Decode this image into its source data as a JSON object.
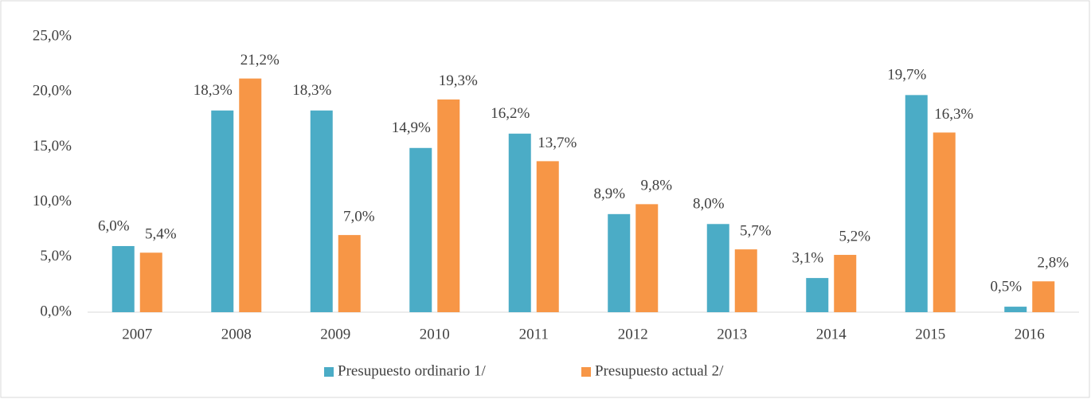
{
  "chart_data": {
    "type": "bar",
    "categories": [
      "2007",
      "2008",
      "2009",
      "2010",
      "2011",
      "2012",
      "2013",
      "2014",
      "2015",
      "2016"
    ],
    "series": [
      {
        "name": "Presupuesto ordinario 1/",
        "color": "#4bacc6",
        "values": [
          6.0,
          18.3,
          18.3,
          14.9,
          16.2,
          8.9,
          8.0,
          3.1,
          19.7,
          0.5
        ],
        "value_labels": [
          "6,0%",
          "18,3%",
          "18,3%",
          "14,9%",
          "16,2%",
          "8,9%",
          "8,0%",
          "3,1%",
          "19,7%",
          "0,5%"
        ]
      },
      {
        "name": "Presupuesto actual 2/",
        "color": "#f79646",
        "values": [
          5.4,
          21.2,
          7.0,
          19.3,
          13.7,
          9.8,
          5.7,
          5.2,
          16.3,
          2.8
        ],
        "value_labels": [
          "5,4%",
          "21,2%",
          "7,0%",
          "19,3%",
          "13,7%",
          "9,8%",
          "5,7%",
          "5,2%",
          "16,3%",
          "2,8%"
        ]
      }
    ],
    "ylim": [
      0,
      25
    ],
    "yticks": [
      {
        "value": 0,
        "label": "0,0%"
      },
      {
        "value": 5,
        "label": "5,0%"
      },
      {
        "value": 10,
        "label": "10,0%"
      },
      {
        "value": 15,
        "label": "15,0%"
      },
      {
        "value": 20,
        "label": "20,0%"
      },
      {
        "value": 25,
        "label": "25,0%"
      }
    ],
    "grid": false,
    "legend": "bottom"
  }
}
